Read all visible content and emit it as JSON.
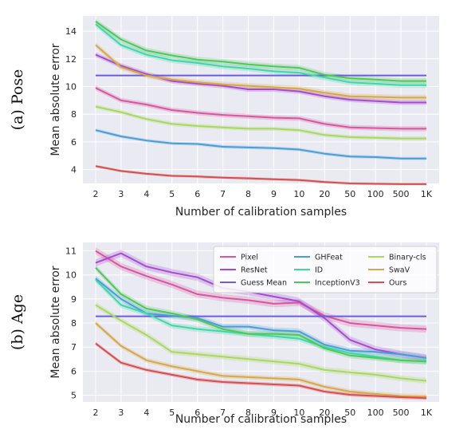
{
  "chart_data": [
    {
      "type": "line",
      "row_label": "(a) Pose",
      "xlabel": "Number of calibration samples",
      "ylabel": "Mean absolute error",
      "categories": [
        "2",
        "3",
        "4",
        "5",
        "6",
        "7",
        "8",
        "9",
        "10",
        "20",
        "50",
        "100",
        "500",
        "1K"
      ],
      "yticks": [
        4,
        6,
        8,
        10,
        12,
        14
      ],
      "ylim": [
        3.0,
        15.1
      ],
      "grid": true,
      "legend": false,
      "series": [
        {
          "name": "Pixel",
          "color": "#d9569f",
          "band": 0.18,
          "values": [
            9.9,
            9.0,
            8.7,
            8.3,
            8.1,
            7.95,
            7.85,
            7.75,
            7.7,
            7.3,
            7.05,
            7.0,
            6.95,
            6.95
          ]
        },
        {
          "name": "ResNet",
          "color": "#a64bd0",
          "band": 0.18,
          "values": [
            12.3,
            11.5,
            10.9,
            10.4,
            10.2,
            10.05,
            9.8,
            9.8,
            9.65,
            9.3,
            9.05,
            8.95,
            8.85,
            8.85
          ]
        },
        {
          "name": "Guess Mean",
          "color": "#6a5fd8",
          "band": 0,
          "values": [
            10.8,
            10.8,
            10.8,
            10.8,
            10.8,
            10.8,
            10.8,
            10.8,
            10.8,
            10.8,
            10.8,
            10.8,
            10.8,
            10.8
          ]
        },
        {
          "name": "GHFeat",
          "color": "#4a9ed8",
          "band": 0.12,
          "values": [
            6.85,
            6.4,
            6.1,
            5.9,
            5.85,
            5.65,
            5.6,
            5.55,
            5.45,
            5.15,
            4.95,
            4.9,
            4.8,
            4.8
          ]
        },
        {
          "name": "ID",
          "color": "#3fd6a8",
          "band": 0.2,
          "values": [
            14.5,
            13.0,
            12.3,
            11.9,
            11.7,
            11.45,
            11.3,
            11.1,
            11.0,
            10.65,
            10.3,
            10.2,
            10.1,
            10.1
          ]
        },
        {
          "name": "InceptionV3",
          "color": "#4fc85a",
          "band": 0.2,
          "values": [
            14.7,
            13.4,
            12.6,
            12.25,
            11.95,
            11.8,
            11.6,
            11.45,
            11.35,
            10.85,
            10.6,
            10.5,
            10.4,
            10.4
          ]
        },
        {
          "name": "Binary-cls",
          "color": "#a8d860",
          "band": 0.15,
          "values": [
            8.55,
            8.15,
            7.65,
            7.3,
            7.15,
            7.05,
            6.95,
            6.95,
            6.85,
            6.5,
            6.35,
            6.3,
            6.25,
            6.25
          ]
        },
        {
          "name": "SwaV",
          "color": "#d6a84a",
          "band": 0.2,
          "values": [
            13.0,
            11.4,
            10.8,
            10.5,
            10.3,
            10.15,
            10.05,
            9.95,
            9.85,
            9.55,
            9.3,
            9.25,
            9.2,
            9.2
          ]
        },
        {
          "name": "Ours",
          "color": "#d64e4e",
          "band": 0.1,
          "values": [
            4.25,
            3.9,
            3.7,
            3.55,
            3.5,
            3.42,
            3.37,
            3.3,
            3.25,
            3.1,
            3.0,
            2.97,
            2.95,
            2.95
          ]
        }
      ]
    },
    {
      "type": "line",
      "row_label": "(b) Age",
      "xlabel": "Number of calibration samples",
      "ylabel": "Mean absolute error",
      "categories": [
        "2",
        "3",
        "4",
        "5",
        "6",
        "7",
        "8",
        "9",
        "10",
        "20",
        "50",
        "100",
        "500",
        "1K"
      ],
      "yticks": [
        5,
        6,
        7,
        8,
        9,
        10,
        11
      ],
      "ylim": [
        4.72,
        11.35
      ],
      "grid": true,
      "legend": true,
      "legend_position": "top-right",
      "series": [
        {
          "name": "Pixel",
          "color": "#d9569f",
          "band": 0.15,
          "values": [
            11.0,
            10.35,
            9.95,
            9.6,
            9.2,
            9.05,
            8.95,
            8.8,
            8.85,
            8.3,
            8.0,
            7.9,
            7.8,
            7.75
          ]
        },
        {
          "name": "ResNet",
          "color": "#a64bd0",
          "band": 0.15,
          "values": [
            10.5,
            10.9,
            10.35,
            10.1,
            9.9,
            9.45,
            9.3,
            9.1,
            8.9,
            8.2,
            7.3,
            6.9,
            6.7,
            6.55
          ]
        },
        {
          "name": "Guess Mean",
          "color": "#6a5fd8",
          "band": 0,
          "values": [
            8.28,
            8.28,
            8.28,
            8.28,
            8.28,
            8.28,
            8.28,
            8.28,
            8.28,
            8.28,
            8.28,
            8.28,
            8.28,
            8.28
          ]
        },
        {
          "name": "GHFeat",
          "color": "#4a9ed8",
          "band": 0.12,
          "values": [
            9.85,
            9.0,
            8.4,
            8.3,
            8.2,
            7.85,
            7.85,
            7.7,
            7.65,
            7.1,
            6.85,
            6.8,
            6.7,
            6.55
          ]
        },
        {
          "name": "ID",
          "color": "#3fd6a8",
          "band": 0.12,
          "values": [
            9.8,
            8.75,
            8.4,
            7.9,
            7.75,
            7.65,
            7.55,
            7.45,
            7.35,
            7.0,
            6.75,
            6.6,
            6.45,
            6.4
          ]
        },
        {
          "name": "InceptionV3",
          "color": "#4fc85a",
          "band": 0.12,
          "values": [
            10.3,
            9.2,
            8.6,
            8.4,
            8.15,
            7.75,
            7.55,
            7.55,
            7.5,
            6.95,
            6.65,
            6.55,
            6.45,
            6.4
          ]
        },
        {
          "name": "Binary-cls",
          "color": "#a8d860",
          "band": 0.12,
          "values": [
            8.75,
            8.1,
            7.5,
            6.8,
            6.7,
            6.6,
            6.5,
            6.4,
            6.3,
            6.05,
            5.95,
            5.85,
            5.7,
            5.6
          ]
        },
        {
          "name": "SwaV",
          "color": "#d6a84a",
          "band": 0.1,
          "values": [
            8.0,
            7.05,
            6.45,
            6.2,
            6.0,
            5.8,
            5.75,
            5.7,
            5.65,
            5.35,
            5.15,
            5.05,
            4.97,
            4.95
          ]
        },
        {
          "name": "Ours",
          "color": "#d64e4e",
          "band": 0.08,
          "values": [
            7.15,
            6.35,
            6.05,
            5.85,
            5.65,
            5.55,
            5.5,
            5.45,
            5.4,
            5.15,
            5.02,
            4.97,
            4.92,
            4.88
          ]
        }
      ]
    }
  ]
}
